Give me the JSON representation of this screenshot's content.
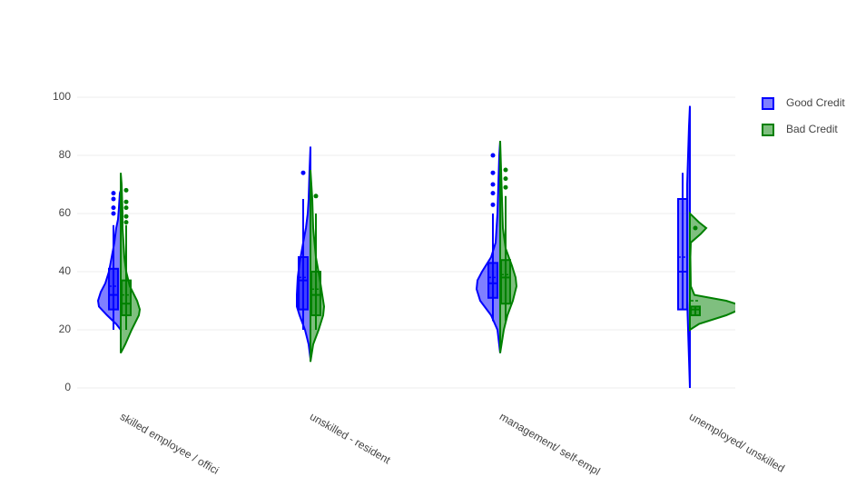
{
  "chart_data": {
    "type": "violin",
    "categories": [
      "skilled employee / offici",
      "unskilled - resident",
      "management/ self-empl",
      "unemployed/ unskilled"
    ],
    "ylim": [
      -3,
      103
    ],
    "yticks": [
      0,
      20,
      40,
      60,
      80,
      100
    ],
    "grid": true,
    "legend": "top-right",
    "series": [
      {
        "name": "Good Credit",
        "color": "#0000ff",
        "side": "negative",
        "violins": [
          {
            "y": [
              20,
              22,
              25,
              28,
              30,
              33,
              36,
              40,
              45,
              50,
              55,
              58,
              62,
              67,
              68
            ],
            "density": [
              0,
              5,
              15,
              24,
              25,
              22,
              17,
              13,
              10,
              7,
              5,
              3,
              2,
              1,
              0
            ],
            "lowerfence": 20,
            "q1": 27,
            "median": 32,
            "q3": 41,
            "upperfence": 56,
            "mean": 35,
            "outliers": [
              60,
              62,
              65,
              67
            ]
          },
          {
            "y": [
              10,
              15,
              20,
              25,
              28,
              32,
              38,
              43,
              50,
              55,
              60,
              65,
              75,
              83
            ],
            "density": [
              0,
              2,
              6,
              12,
              15,
              15,
              14,
              12,
              8,
              5,
              3,
              2,
              1,
              0
            ],
            "lowerfence": 20,
            "q1": 27,
            "median": 37,
            "q3": 45,
            "upperfence": 65,
            "mean": 38,
            "outliers": [
              74
            ]
          },
          {
            "y": [
              12,
              20,
              25,
              30,
              34,
              37,
              40,
              45,
              50,
              60,
              70,
              80,
              85
            ],
            "density": [
              0,
              3,
              10,
              22,
              26,
              25,
              20,
              10,
              5,
              3,
              2,
              1,
              0
            ],
            "lowerfence": 23,
            "q1": 31,
            "median": 36,
            "q3": 43,
            "upperfence": 60,
            "mean": 38,
            "outliers": [
              63,
              67,
              70,
              74,
              80
            ]
          },
          {
            "y": [
              0,
              10,
              20,
              30,
              40,
              50,
              60,
              70,
              80,
              90,
              97
            ],
            "density": [
              0,
              1,
              2,
              3,
              3,
              3,
              3,
              3,
              2,
              1,
              0
            ],
            "lowerfence": 27,
            "q1": 27,
            "median": 40,
            "q3": 65,
            "upperfence": 74,
            "mean": 45,
            "outliers": []
          }
        ]
      },
      {
        "name": "Bad Credit",
        "color": "#008000",
        "side": "positive",
        "violins": [
          {
            "y": [
              12,
              15,
              20,
              25,
              27,
              30,
              35,
              40,
              45,
              55,
              60,
              70,
              74
            ],
            "density": [
              0,
              5,
              12,
              20,
              21,
              18,
              10,
              6,
              4,
              2,
              2,
              1,
              0
            ],
            "lowerfence": 20,
            "q1": 25,
            "median": 29,
            "q3": 37,
            "upperfence": 56,
            "mean": 32,
            "outliers": [
              57,
              59,
              62,
              64,
              68
            ]
          },
          {
            "y": [
              9,
              15,
              20,
              25,
              28,
              32,
              38,
              45,
              55,
              65,
              70,
              75
            ],
            "density": [
              0,
              3,
              9,
              14,
              15,
              13,
              10,
              6,
              3,
              2,
              1,
              0
            ],
            "lowerfence": 20,
            "q1": 25,
            "median": 32,
            "q3": 40,
            "upperfence": 60,
            "mean": 34,
            "outliers": [
              66
            ]
          },
          {
            "y": [
              12,
              20,
              25,
              30,
              35,
              38,
              42,
              48,
              55,
              65,
              75,
              85
            ],
            "density": [
              0,
              4,
              8,
              14,
              18,
              17,
              13,
              6,
              3,
              2,
              1,
              0
            ],
            "lowerfence": 23,
            "q1": 29,
            "median": 38,
            "q3": 44,
            "upperfence": 66,
            "mean": 39,
            "outliers": [
              69,
              72,
              75
            ]
          },
          {
            "y": [
              20,
              22,
              25,
              27,
              28,
              30,
              32,
              35,
              45,
              50,
              53,
              55,
              57,
              60
            ],
            "density": [
              0,
              10,
              40,
              55,
              60,
              40,
              5,
              1,
              0.5,
              1,
              12,
              18,
              10,
              0
            ],
            "lowerfence": 25,
            "q1": 25,
            "median": 27,
            "q3": 28,
            "upperfence": 28,
            "mean": 30,
            "outliers": [
              55
            ]
          }
        ]
      }
    ]
  }
}
